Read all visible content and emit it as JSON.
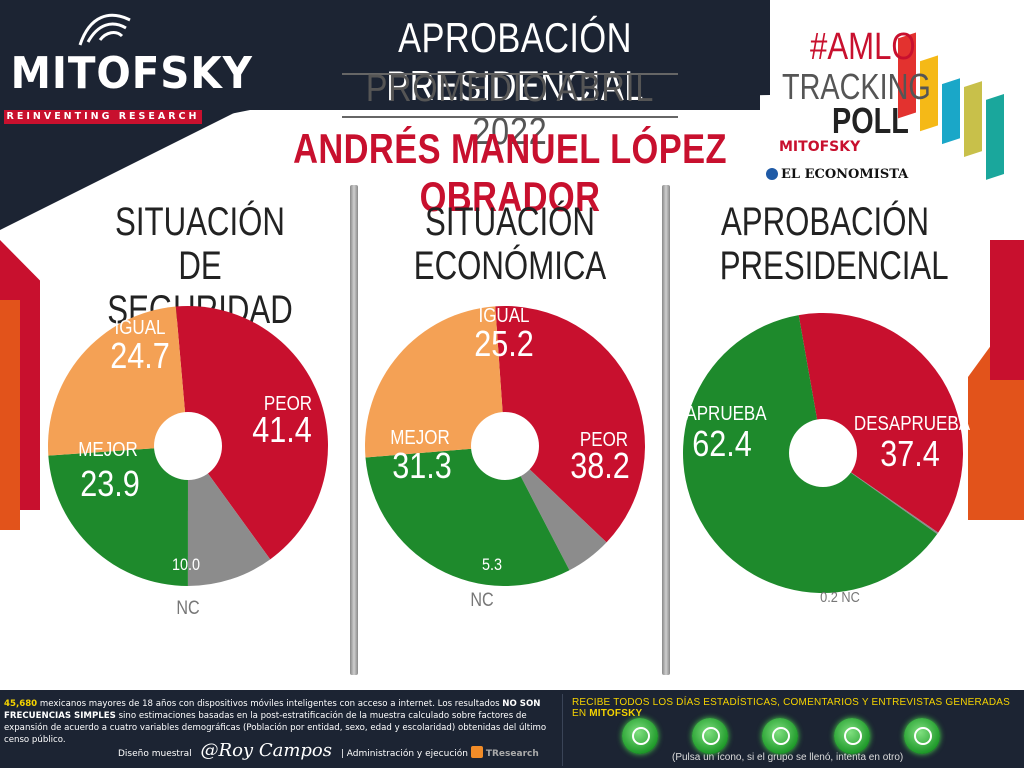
{
  "header": {
    "title": "APROBACIÓN PRESIDENCIAL",
    "subtitle": "PROMEDIO ABRIL 2022",
    "name": "ANDRÉS MANUEL LÓPEZ OBRADOR"
  },
  "logo": {
    "text": "MITOFSKY",
    "tagline": "REINVENTING RESEARCH"
  },
  "poll": {
    "hashtag": "#AMLO",
    "tracking": "TRACKING",
    "poll": "POLL",
    "partner1": "MITOFSKY",
    "partner2": "EL ECONOMISTA"
  },
  "colors": {
    "red": "#c8102e",
    "green": "#1e8a2c",
    "orange": "#f4a155",
    "gray": "#8c8c8c",
    "navy": "#1c2433"
  },
  "chart_data": [
    {
      "type": "pie",
      "title": "SITUACIÓN DE SEGURIDAD",
      "title_lines": [
        "SITUACIÓN DE",
        "SEGURIDAD"
      ],
      "slices": [
        {
          "label": "PEOR",
          "value": 41.4,
          "value_text": "41.4",
          "color": "#c8102e"
        },
        {
          "label": "NC",
          "value": 10.0,
          "value_text": "10.0",
          "color": "#8c8c8c"
        },
        {
          "label": "MEJOR",
          "value": 23.9,
          "value_text": "23.9",
          "color": "#1e8a2c"
        },
        {
          "label": "IGUAL",
          "value": 24.7,
          "value_text": "24.7",
          "color": "#f4a155"
        }
      ]
    },
    {
      "type": "pie",
      "title": "SITUACIÓN ECONÓMICA",
      "title_lines": [
        "SITUACIÓN",
        "ECONÓMICA"
      ],
      "slices": [
        {
          "label": "PEOR",
          "value": 38.2,
          "value_text": "38.2",
          "color": "#c8102e"
        },
        {
          "label": "NC",
          "value": 5.3,
          "value_text": "5.3",
          "color": "#8c8c8c"
        },
        {
          "label": "MEJOR",
          "value": 31.3,
          "value_text": "31.3",
          "color": "#1e8a2c"
        },
        {
          "label": "IGUAL",
          "value": 25.2,
          "value_text": "25.2",
          "color": "#f4a155"
        }
      ]
    },
    {
      "type": "pie",
      "title": "APROBACIÓN PRESIDENCIAL",
      "title_lines": [
        "APROBACIÓN",
        "PRESIDENCIAL"
      ],
      "slices": [
        {
          "label": "DESAPRUEBA",
          "value": 37.4,
          "value_text": "37.4",
          "color": "#c8102e"
        },
        {
          "label": "NC",
          "value": 0.2,
          "value_text": "0.2",
          "color": "#8c8c8c"
        },
        {
          "label": "APRUEBA",
          "value": 62.4,
          "value_text": "62.4",
          "color": "#1e8a2c"
        }
      ]
    }
  ],
  "footer": {
    "sample_number": "45,680",
    "methodology_1": "mexicanos mayores de 18 años con dispositivos móviles inteligentes con acceso a internet. Los resultados",
    "methodology_bold": "NO SON FRECUENCIAS SIMPLES",
    "methodology_2": "sino estimaciones basadas en la post-estratificación de la muestra calculado sobre factores de expansión de acuerdo a cuatro variables demográficas (Población por entidad, sexo, edad y escolaridad) obtenidas del último censo público.",
    "design_label": "Diseño muestral",
    "signature": "@Roy Campos",
    "admin_label": "| Administración y ejecución",
    "tresearch": "TResearch",
    "recibe_text": "RECIBE TODOS LOS DÍAS ESTADÍSTICAS, COMENTARIOS Y ENTREVISTAS GENERADAS EN",
    "recibe_brand": "MITOFSKY",
    "pulsa": "(Pulsa un ícono, si el grupo se llenó, intenta en otro)"
  }
}
